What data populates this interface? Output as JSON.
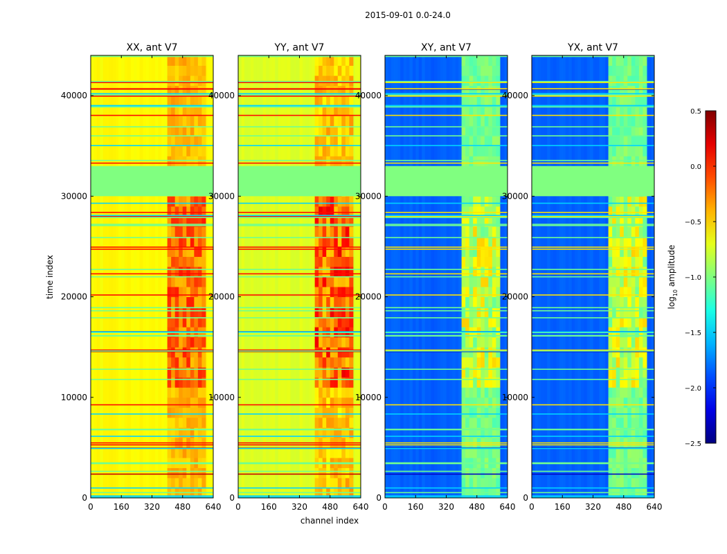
{
  "chart_data": {
    "type": "heatmap",
    "suptitle": "2015-09-01 0.0-24.0",
    "xlabel": "channel index",
    "ylabel": "time index",
    "colorbar_label_main": "log",
    "colorbar_label_sub": "10",
    "colorbar_label_tail": " amplitude",
    "x_range": [
      0,
      640
    ],
    "y_range": [
      0,
      44000
    ],
    "x_ticks": [
      0,
      160,
      320,
      480,
      640
    ],
    "y_ticks": [
      0,
      10000,
      20000,
      30000,
      40000
    ],
    "colorbar_range": [
      -2.5,
      0.5
    ],
    "colorbar_ticks": [
      "0.5",
      "0.0",
      "−0.5",
      "−1.0",
      "−1.5",
      "−2.0",
      "−2.5"
    ],
    "colorbar_tick_values": [
      0.5,
      0.0,
      -0.5,
      -1.0,
      -1.5,
      -2.0,
      -2.5
    ],
    "flagged_time_range": [
      30000,
      33000
    ],
    "flagged_value": -1.0,
    "rfi_channel_range": [
      400,
      600
    ],
    "panels": [
      {
        "title": "XX, ant V7",
        "base_level": -0.62,
        "rfi_level": -0.05,
        "kind": "parallel"
      },
      {
        "title": "YY, ant V7",
        "base_level": -0.72,
        "rfi_level": 0.05,
        "kind": "parallel"
      },
      {
        "title": "XY, ant V7",
        "base_level": -1.85,
        "rfi_level": -0.6,
        "kind": "cross"
      },
      {
        "title": "YX, ant V7",
        "base_level": -1.85,
        "rfi_level": -0.6,
        "kind": "cross"
      }
    ]
  }
}
